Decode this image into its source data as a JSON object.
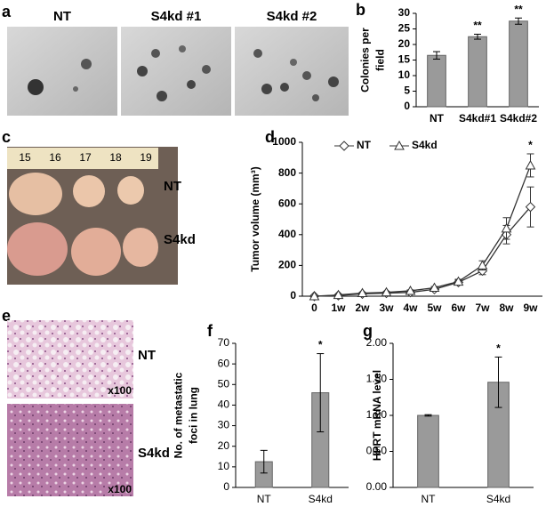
{
  "panels": {
    "a": {
      "label": "a",
      "captions": [
        "NT",
        "S4kd #1",
        "S4kd #2"
      ]
    },
    "c": {
      "label": "c",
      "ruler": [
        "15",
        "16",
        "17",
        "18",
        "19"
      ],
      "rows": [
        "NT",
        "S4kd"
      ]
    },
    "e": {
      "label": "e",
      "rows": [
        "NT",
        "S4kd"
      ],
      "magnification": [
        "x100",
        "x100"
      ]
    }
  },
  "chart_data": [
    {
      "type": "bar",
      "label": "b",
      "ylabel": [
        "Colonies per",
        "field"
      ],
      "categories": [
        "NT",
        "S4kd#1",
        "S4kd#2"
      ],
      "values": [
        16.5,
        22.5,
        27.5
      ],
      "errors": [
        1.2,
        0.8,
        1.0
      ],
      "annotations": [
        null,
        "**",
        "**"
      ],
      "color": "#9a9a9a",
      "ylim": [
        0,
        30
      ],
      "yticks": [
        0,
        5,
        10,
        15,
        20,
        25,
        30
      ]
    },
    {
      "type": "line",
      "label": "d",
      "ylabel": [
        "Tumor volume (mm³)"
      ],
      "x": [
        "0",
        "1w",
        "2w",
        "3w",
        "4w",
        "5w",
        "6w",
        "7w",
        "8w",
        "9w"
      ],
      "series": [
        {
          "name": "NT",
          "color": "#333333",
          "marker": "diamond",
          "values": [
            0,
            5,
            15,
            20,
            25,
            45,
            90,
            165,
            400,
            580
          ],
          "errors": [
            2,
            3,
            4,
            5,
            5,
            8,
            15,
            25,
            60,
            130
          ]
        },
        {
          "name": "S4kd",
          "color": "#333333",
          "marker": "triangle",
          "values": [
            0,
            8,
            20,
            25,
            35,
            55,
            95,
            200,
            440,
            850
          ],
          "errors": [
            2,
            3,
            4,
            5,
            6,
            8,
            15,
            30,
            70,
            75
          ]
        }
      ],
      "annotations": [
        null,
        null,
        null,
        null,
        null,
        null,
        null,
        null,
        null,
        "*"
      ],
      "ylim": [
        0,
        1000
      ],
      "yticks": [
        0,
        200,
        400,
        600,
        800,
        1000
      ]
    },
    {
      "type": "bar",
      "label": "f",
      "ylabel": [
        "No. of metastatic",
        "foci in lung"
      ],
      "categories": [
        "NT",
        "S4kd"
      ],
      "values": [
        12.5,
        46
      ],
      "errors": [
        5.5,
        19
      ],
      "annotations": [
        null,
        "*"
      ],
      "color": "#9a9a9a",
      "ylim": [
        0,
        70
      ],
      "yticks": [
        0,
        10,
        20,
        30,
        40,
        50,
        60,
        70
      ]
    },
    {
      "type": "bar",
      "label": "g",
      "ylabel": [
        "HPRT mRNA level"
      ],
      "categories": [
        "NT",
        "S4kd"
      ],
      "values": [
        1.0,
        1.46
      ],
      "errors": [
        0.01,
        0.35
      ],
      "annotations": [
        null,
        "*"
      ],
      "color": "#9a9a9a",
      "ylim": [
        0,
        2
      ],
      "yticks": [
        {
          "value": 0,
          "label": "0.00"
        },
        {
          "value": 0.5,
          "label": "0.50"
        },
        {
          "value": 1,
          "label": "1.00"
        },
        {
          "value": 1.5,
          "label": "1.50"
        },
        {
          "value": 2,
          "label": "2.00"
        }
      ]
    }
  ]
}
